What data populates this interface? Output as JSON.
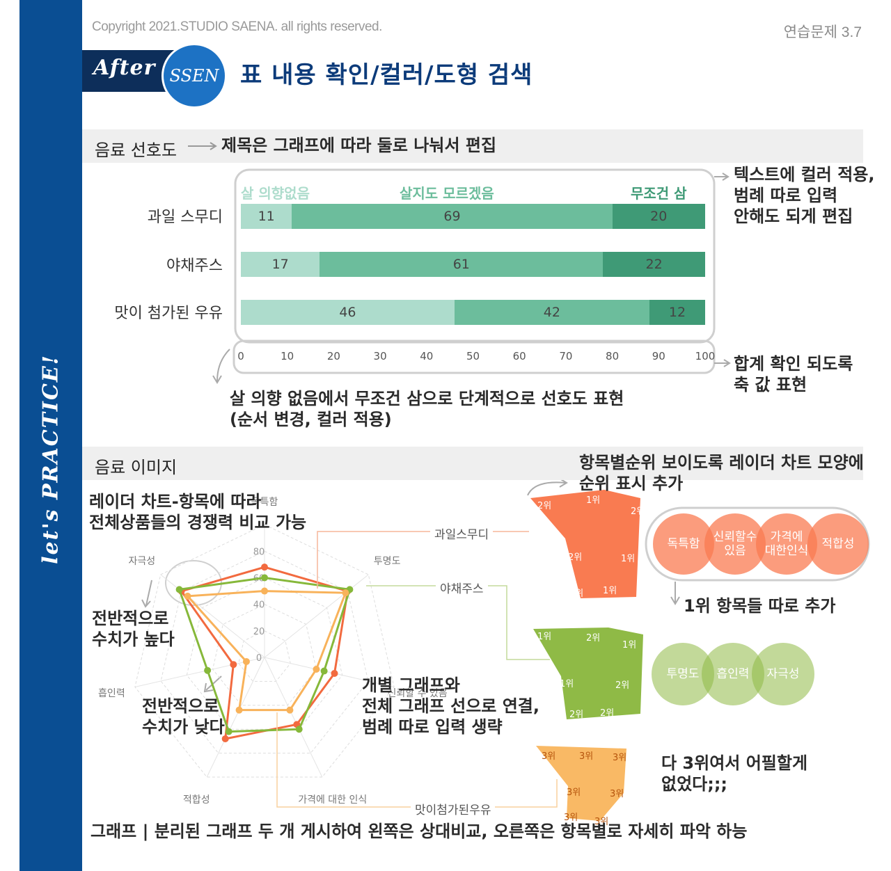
{
  "header": {
    "copyright": "Copyright 2021.STUDIO SAENA. all rights reserved.",
    "exercise": "연습문제 3.7",
    "badge_after": "After",
    "badge_ssen": "SSEN",
    "title": "표 내용 확인/컬러/도형 검색",
    "side_text": "let's PRACTICE!"
  },
  "section1": {
    "title": "음료 선호도",
    "note_title": "제목은 그래프에 따라 둘로 나눠서 편집",
    "note_legend": "텍스트에 컬러 적용,\n범례 따로 입력\n안해도 되게 편집",
    "note_axis": "합계 확인 되도록\n축 값 표현",
    "note_order": "살 의향 없음에서 무조건 삼으로 단계적으로 선호도 표현\n(순서 변경, 컬러 적용)"
  },
  "section2": {
    "title": "음료 이미지",
    "note_radar": "레이더 차트-항목에 따라\n전체상품들의 경쟁력 비교 가능",
    "note_high": "전반적으로\n수치가 높다",
    "note_low": "전반적으로\n수치가 낮다",
    "note_individual": "개별 그래프와\n전체 그래프 선으로 연결,\n범례 따로 입력 생략",
    "note_rank": "항목별순위 보이도록 레이더 차트 모양에\n순위 표시 추가",
    "note_first": "1위 항목들 따로 추가",
    "note_third": "다 3위여서 어필할게\n없었다;;;",
    "note_bottom": "그래프 | 분리된 그래프 두 개 게시하여 왼쪽은 상대비교, 오른쪽은 항목별로 자세히 파악 하능",
    "connector_labels": [
      "과일스무디",
      "야채주스",
      "맛이첨가된우유"
    ],
    "radar_axes": [
      "독특함",
      "투명도",
      "신뢰할 수 있음",
      "가격에 대한 인식",
      "적합성",
      "흡인력",
      "자극성"
    ],
    "radar_ticks": [
      "0",
      "20",
      "40",
      "60",
      "80"
    ],
    "ranks_orange": [
      "2위",
      "1위",
      "2위",
      "2위",
      "1위",
      "1위",
      "1위"
    ],
    "ranks_green": [
      "1위",
      "2위",
      "1위",
      "1위",
      "2위",
      "2위",
      "2위"
    ],
    "ranks_yellow": [
      "3위",
      "3위",
      "3위",
      "3위",
      "3위",
      "3위",
      "3위"
    ],
    "first_orange": [
      "독특함",
      "신뢰할수\n있음",
      "가격에\n대한인식",
      "적합성"
    ],
    "first_green": [
      "투명도",
      "흡인력",
      "자극성"
    ]
  },
  "colors": {
    "navy": "#0a4e93",
    "bar_light": "#addccc",
    "bar_mid": "#6cbd9c",
    "bar_dark": "#3f9a76",
    "orange": "#f26a3f",
    "green": "#86b83a",
    "yellow": "#f8b25a"
  },
  "chart_data": [
    {
      "type": "bar",
      "title": "",
      "orientation": "horizontal-stacked",
      "categories": [
        "과일 스무디",
        "야채주스",
        "맛이 첨가된 우유"
      ],
      "series": [
        {
          "name": "살 의향없음",
          "values": [
            11,
            17,
            46
          ]
        },
        {
          "name": "살지도 모르겠음",
          "values": [
            69,
            61,
            42
          ]
        },
        {
          "name": "무조건 삼",
          "values": [
            20,
            22,
            12
          ]
        }
      ],
      "xlim": [
        0,
        100
      ],
      "xticks": [
        "0",
        "10",
        "20",
        "30",
        "40",
        "50",
        "60",
        "70",
        "80",
        "90",
        "100"
      ],
      "legend": "top"
    },
    {
      "type": "radar",
      "title": "",
      "axes": [
        "독특함",
        "투명도",
        "신뢰할 수 있음",
        "가격에 대한 인식",
        "적합성",
        "흡인력",
        "자극성"
      ],
      "rlim": [
        0,
        80
      ],
      "series": [
        {
          "name": "과일스무디",
          "values": [
            68,
            80,
            54,
            56,
            68,
            24,
            80
          ]
        },
        {
          "name": "야채주스",
          "values": [
            60,
            82,
            46,
            60,
            62,
            44,
            82
          ]
        },
        {
          "name": "맛이첨가된우유",
          "values": [
            50,
            78,
            40,
            44,
            44,
            14,
            74
          ]
        }
      ]
    }
  ]
}
